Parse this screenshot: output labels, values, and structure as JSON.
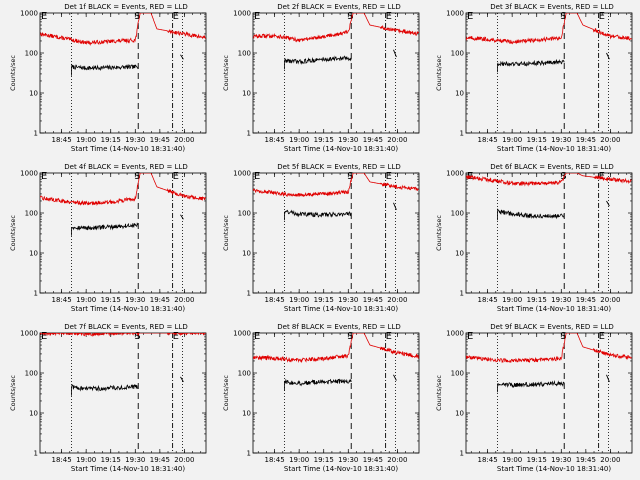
{
  "figure": {
    "start_time_label": "Start Time (14-Nov-10 18:31:40)",
    "ylabel": "Counts/sec",
    "y_ticks": [
      {
        "value": 1000,
        "label": "1000"
      },
      {
        "value": 100,
        "label": "100"
      },
      {
        "value": 10,
        "label": "10"
      },
      {
        "value": 1,
        "label": "1"
      }
    ],
    "x_ticks": [
      {
        "value": 18.75,
        "label": "18:45"
      },
      {
        "value": 19.0,
        "label": "19:00"
      },
      {
        "value": 19.25,
        "label": "19:15"
      },
      {
        "value": 19.5,
        "label": "19:30"
      },
      {
        "value": 19.75,
        "label": "19:45"
      },
      {
        "value": 20.0,
        "label": "20:00"
      }
    ],
    "marker_labels": {
      "eclipse_end": "E",
      "saa_start": "S",
      "eclipse_start": "E"
    },
    "colors": {
      "events": "#000000",
      "lld": "#e00000",
      "background": "#f2f2f2",
      "axes": "#000000"
    }
  },
  "chart_data": [
    {
      "type": "line",
      "title": "Det 1f BLACK = Events, RED = LLD",
      "xlabel": "Start Time (14-Nov-10 18:31:40)",
      "ylabel": "Counts/sec",
      "yscale": "log",
      "ylim": [
        1,
        1000
      ],
      "xlim": [
        18.53,
        20.22
      ],
      "grid": false,
      "vlines": {
        "dotted": [
          18.85,
          19.98
        ],
        "dashed": [
          19.53,
          19.88
        ]
      },
      "labels_at": {
        "E1": 18.52,
        "S": 19.55,
        "E2": 19.87
      },
      "series": [
        {
          "name": "Events",
          "color": "#000000",
          "x": [
            18.85,
            19.0,
            19.2,
            19.53
          ],
          "y": [
            45,
            42,
            43,
            45
          ],
          "post": {
            "x": [
              19.96,
              19.99
            ],
            "y": [
              90,
              70
            ]
          }
        },
        {
          "name": "LLD",
          "color": "#e00000",
          "x": [
            18.53,
            18.75,
            19.0,
            19.25,
            19.5,
            19.55,
            19.6,
            19.66,
            19.72,
            20.0,
            20.22
          ],
          "y": [
            300,
            240,
            180,
            195,
            210,
            1000,
            1000,
            1000,
            400,
            300,
            240
          ]
        }
      ]
    },
    {
      "type": "line",
      "title": "Det 2f BLACK = Events, RED = LLD",
      "xlabel": "Start Time (14-Nov-10 18:31:40)",
      "ylabel": "Counts/sec",
      "yscale": "log",
      "ylim": [
        1,
        1000
      ],
      "xlim": [
        18.53,
        20.22
      ],
      "grid": false,
      "vlines": {
        "dotted": [
          18.85,
          19.98
        ],
        "dashed": [
          19.53,
          19.88
        ]
      },
      "labels_at": {
        "E1": 18.52,
        "S": 19.55,
        "E2": 19.87
      },
      "series": [
        {
          "name": "Events",
          "color": "#000000",
          "x": [
            18.85,
            19.0,
            19.2,
            19.53
          ],
          "y": [
            65,
            60,
            68,
            75
          ],
          "post": {
            "x": [
              19.96,
              19.99
            ],
            "y": [
              120,
              80
            ]
          }
        },
        {
          "name": "LLD",
          "color": "#e00000",
          "x": [
            18.53,
            18.75,
            19.0,
            19.25,
            19.5,
            19.55,
            19.6,
            19.66,
            19.72,
            20.0,
            20.22
          ],
          "y": [
            260,
            270,
            210,
            260,
            330,
            1000,
            1000,
            1000,
            500,
            360,
            300
          ]
        }
      ]
    },
    {
      "type": "line",
      "title": "Det 3f BLACK = Events, RED = LLD",
      "xlabel": "Start Time (14-Nov-10 18:31:40)",
      "ylabel": "Counts/sec",
      "yscale": "log",
      "ylim": [
        1,
        1000
      ],
      "xlim": [
        18.53,
        20.22
      ],
      "grid": false,
      "vlines": {
        "dotted": [
          18.85,
          19.98
        ],
        "dashed": [
          19.53,
          19.88
        ]
      },
      "labels_at": {
        "E1": 18.52,
        "S": 19.55,
        "E2": 19.87
      },
      "series": [
        {
          "name": "Events",
          "color": "#000000",
          "x": [
            18.85,
            19.0,
            19.2,
            19.53
          ],
          "y": [
            55,
            52,
            55,
            60
          ],
          "post": {
            "x": [
              19.96,
              19.99
            ],
            "y": [
              100,
              70
            ]
          }
        },
        {
          "name": "LLD",
          "color": "#e00000",
          "x": [
            18.53,
            18.75,
            19.0,
            19.25,
            19.5,
            19.55,
            19.6,
            19.66,
            19.72,
            20.0,
            20.22
          ],
          "y": [
            240,
            220,
            190,
            210,
            240,
            1000,
            1000,
            1000,
            500,
            260,
            230
          ]
        }
      ]
    },
    {
      "type": "line",
      "title": "Det 4f BLACK = Events, RED = LLD",
      "xlabel": "Start Time (14-Nov-10 18:31:40)",
      "ylabel": "Counts/sec",
      "yscale": "log",
      "ylim": [
        1,
        1000
      ],
      "xlim": [
        18.53,
        20.22
      ],
      "grid": false,
      "vlines": {
        "dotted": [
          18.85,
          19.98
        ],
        "dashed": [
          19.53,
          19.88
        ]
      },
      "labels_at": {
        "E1": 18.52,
        "S": 19.55,
        "E2": 19.87
      },
      "series": [
        {
          "name": "Events",
          "color": "#000000",
          "x": [
            18.85,
            19.0,
            19.2,
            19.53
          ],
          "y": [
            45,
            42,
            44,
            50
          ],
          "post": {
            "x": [
              19.96,
              19.99
            ],
            "y": [
              90,
              70
            ]
          }
        },
        {
          "name": "LLD",
          "color": "#e00000",
          "x": [
            18.53,
            18.75,
            19.0,
            19.25,
            19.5,
            19.55,
            19.6,
            19.66,
            19.72,
            20.0,
            20.22
          ],
          "y": [
            240,
            200,
            175,
            185,
            230,
            1000,
            1000,
            1000,
            450,
            260,
            220
          ]
        }
      ]
    },
    {
      "type": "line",
      "title": "Det 5f BLACK = Events, RED = LLD",
      "xlabel": "Start Time (14-Nov-10 18:31:40)",
      "ylabel": "Counts/sec",
      "yscale": "log",
      "ylim": [
        1,
        1000
      ],
      "xlim": [
        18.53,
        20.22
      ],
      "grid": false,
      "vlines": {
        "dotted": [
          18.85,
          19.98
        ],
        "dashed": [
          19.53,
          19.88
        ]
      },
      "labels_at": {
        "E1": 18.52,
        "S": 19.55,
        "E2": 19.87
      },
      "series": [
        {
          "name": "Events",
          "color": "#000000",
          "x": [
            18.85,
            19.0,
            19.2,
            19.53
          ],
          "y": [
            110,
            95,
            90,
            95
          ],
          "post": {
            "x": [
              19.96,
              19.99
            ],
            "y": [
              180,
              120
            ]
          }
        },
        {
          "name": "LLD",
          "color": "#e00000",
          "x": [
            18.53,
            18.75,
            19.0,
            19.25,
            19.5,
            19.55,
            19.6,
            19.66,
            19.72,
            20.0,
            20.22
          ],
          "y": [
            380,
            310,
            280,
            300,
            330,
            1000,
            1000,
            1000,
            600,
            450,
            400
          ]
        }
      ]
    },
    {
      "type": "line",
      "title": "Det 6f BLACK = Events, RED = LLD",
      "xlabel": "Start Time (14-Nov-10 18:31:40)",
      "ylabel": "Counts/sec",
      "yscale": "log",
      "ylim": [
        1,
        1000
      ],
      "xlim": [
        18.53,
        20.22
      ],
      "grid": false,
      "vlines": {
        "dotted": [
          18.85,
          19.98
        ],
        "dashed": [
          19.53,
          19.88
        ]
      },
      "labels_at": {
        "E1": 18.52,
        "S": 19.55,
        "E2": 19.87
      },
      "series": [
        {
          "name": "Events",
          "color": "#000000",
          "x": [
            18.85,
            19.0,
            19.2,
            19.53
          ],
          "y": [
            110,
            95,
            85,
            85
          ],
          "post": {
            "x": [
              19.96,
              19.99
            ],
            "y": [
              200,
              150
            ]
          }
        },
        {
          "name": "LLD",
          "color": "#e00000",
          "x": [
            18.53,
            18.75,
            19.0,
            19.25,
            19.5,
            19.55,
            19.6,
            19.66,
            19.72,
            20.0,
            20.22
          ],
          "y": [
            800,
            680,
            560,
            540,
            580,
            1000,
            1000,
            1000,
            850,
            700,
            600
          ]
        }
      ]
    },
    {
      "type": "line",
      "title": "Det 7f BLACK = Events, RED = LLD",
      "xlabel": "Start Time (14-Nov-10 18:31:40)",
      "ylabel": "Counts/sec",
      "yscale": "log",
      "ylim": [
        1,
        1000
      ],
      "xlim": [
        18.53,
        20.22
      ],
      "grid": false,
      "vlines": {
        "dotted": [
          18.85,
          19.98
        ],
        "dashed": [
          19.53,
          19.88
        ]
      },
      "labels_at": {
        "E1": 18.52,
        "S": 19.55,
        "E2": 19.87
      },
      "series": [
        {
          "name": "Events",
          "color": "#000000",
          "x": [
            18.85,
            19.0,
            19.2,
            19.53
          ],
          "y": [
            45,
            40,
            42,
            45
          ],
          "post": {
            "x": [
              19.96,
              19.99
            ],
            "y": [
              80,
              60
            ]
          }
        },
        {
          "name": "LLD",
          "color": "#e00000",
          "x": [
            18.53,
            18.75,
            19.0,
            19.25,
            19.5,
            19.55,
            19.6,
            19.66,
            19.72,
            20.0,
            20.22
          ],
          "y": [
            1000,
            1000,
            950,
            1000,
            1000,
            1000,
            1000,
            1000,
            1000,
            1000,
            1000
          ]
        }
      ]
    },
    {
      "type": "line",
      "title": "Det 8f BLACK = Events, RED = LLD",
      "xlabel": "Start Time (14-Nov-10 18:31:40)",
      "ylabel": "Counts/sec",
      "yscale": "log",
      "ylim": [
        1,
        1000
      ],
      "xlim": [
        18.53,
        20.22
      ],
      "grid": false,
      "vlines": {
        "dotted": [
          18.85,
          19.98
        ],
        "dashed": [
          19.53,
          19.88
        ]
      },
      "labels_at": {
        "E1": 18.52,
        "S": 19.55,
        "E2": 19.87
      },
      "series": [
        {
          "name": "Events",
          "color": "#000000",
          "x": [
            18.85,
            19.0,
            19.2,
            19.53
          ],
          "y": [
            60,
            55,
            60,
            62
          ],
          "post": {
            "x": [
              19.96,
              19.99
            ],
            "y": [
              90,
              65
            ]
          }
        },
        {
          "name": "LLD",
          "color": "#e00000",
          "x": [
            18.53,
            18.75,
            19.0,
            19.25,
            19.5,
            19.55,
            19.6,
            19.66,
            19.72,
            20.0,
            20.22
          ],
          "y": [
            250,
            230,
            210,
            230,
            270,
            1000,
            1000,
            1000,
            500,
            320,
            260
          ]
        }
      ]
    },
    {
      "type": "line",
      "title": "Det 9f BLACK = Events, RED = LLD",
      "xlabel": "Start Time (14-Nov-10 18:31:40)",
      "ylabel": "Counts/sec",
      "yscale": "log",
      "ylim": [
        1,
        1000
      ],
      "xlim": [
        18.53,
        20.22
      ],
      "grid": false,
      "vlines": {
        "dotted": [
          18.85,
          19.98
        ],
        "dashed": [
          19.53,
          19.88
        ]
      },
      "labels_at": {
        "E1": 18.52,
        "S": 19.55,
        "E2": 19.87
      },
      "series": [
        {
          "name": "Events",
          "color": "#000000",
          "x": [
            18.85,
            19.0,
            19.2,
            19.53
          ],
          "y": [
            55,
            50,
            52,
            55
          ],
          "post": {
            "x": [
              19.96,
              19.99
            ],
            "y": [
              90,
              60
            ]
          }
        },
        {
          "name": "LLD",
          "color": "#e00000",
          "x": [
            18.53,
            18.75,
            19.0,
            19.25,
            19.5,
            19.55,
            19.6,
            19.66,
            19.72,
            20.0,
            20.22
          ],
          "y": [
            250,
            220,
            200,
            210,
            230,
            1000,
            1000,
            1000,
            450,
            280,
            240
          ]
        }
      ]
    }
  ]
}
